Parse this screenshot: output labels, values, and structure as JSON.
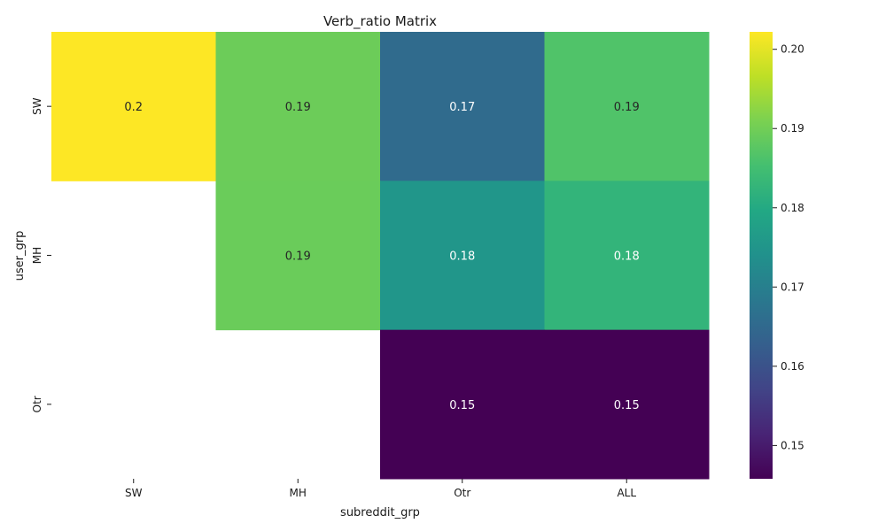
{
  "chart_data": {
    "type": "heatmap",
    "title": "Verb_ratio Matrix",
    "xlabel": "subreddit_grp",
    "ylabel": "user_grp",
    "x_categories": [
      "SW",
      "MH",
      "Otr",
      "ALL"
    ],
    "y_categories": [
      "SW",
      "MH",
      "Otr"
    ],
    "values": [
      [
        0.2022,
        0.1895,
        0.1655,
        0.1865
      ],
      [
        null,
        0.1892,
        0.1752,
        0.1825
      ],
      [
        null,
        null,
        0.1458,
        0.1458
      ]
    ],
    "cell_labels": [
      [
        "0.2",
        "0.19",
        "0.17",
        "0.19"
      ],
      [
        "",
        "0.19",
        "0.18",
        "0.18"
      ],
      [
        "",
        "",
        "0.15",
        "0.15"
      ]
    ],
    "colormap": "viridis",
    "colorbar": {
      "vmin": 0.1458,
      "vmax": 0.2022,
      "ticks": [
        0.15,
        0.16,
        0.17,
        0.18,
        0.19,
        0.2
      ],
      "tick_labels": [
        "0.15",
        "0.16",
        "0.17",
        "0.18",
        "0.19",
        "0.20"
      ]
    }
  }
}
